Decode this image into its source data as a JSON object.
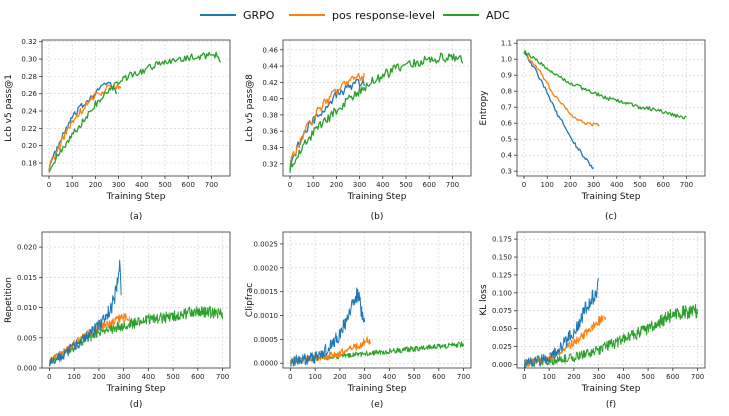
{
  "legend": [
    {
      "name": "GRPO",
      "color": "#1f77b4"
    },
    {
      "name": "pos response-level",
      "color": "#ff7f0e"
    },
    {
      "name": "ADC",
      "color": "#2ca02c"
    }
  ],
  "chart_data": [
    {
      "type": "line",
      "caption": "(a)",
      "xlabel": "Training Step",
      "ylabel": "Lcb v5 pass@1",
      "xlim": [
        -30,
        780
      ],
      "ylim": [
        0.165,
        0.322
      ],
      "xticks": [
        0,
        100,
        200,
        300,
        400,
        500,
        600,
        700
      ],
      "yticks": [
        0.18,
        0.2,
        0.22,
        0.24,
        0.26,
        0.28,
        0.3,
        0.32
      ],
      "ytick_labels": [
        "0.18",
        "0.20",
        "0.22",
        "0.24",
        "0.26",
        "0.28",
        "0.30",
        "0.32"
      ],
      "noise": [
        0.004,
        0.004,
        0.004
      ],
      "series": [
        {
          "name": "GRPO",
          "x": [
            0,
            25,
            50,
            75,
            100,
            125,
            150,
            175,
            200,
            225,
            250,
            275,
            290
          ],
          "y": [
            0.175,
            0.19,
            0.205,
            0.22,
            0.232,
            0.24,
            0.248,
            0.255,
            0.262,
            0.268,
            0.272,
            0.268,
            0.262
          ]
        },
        {
          "name": "pos response-level",
          "x": [
            0,
            25,
            50,
            75,
            100,
            125,
            150,
            175,
            200,
            225,
            250,
            275,
            300,
            310
          ],
          "y": [
            0.175,
            0.188,
            0.202,
            0.216,
            0.228,
            0.236,
            0.244,
            0.252,
            0.258,
            0.262,
            0.266,
            0.268,
            0.27,
            0.267
          ]
        },
        {
          "name": "ADC",
          "x": [
            0,
            50,
            100,
            150,
            200,
            250,
            300,
            350,
            400,
            450,
            500,
            550,
            600,
            650,
            700,
            725,
            740
          ],
          "y": [
            0.173,
            0.192,
            0.212,
            0.23,
            0.248,
            0.262,
            0.272,
            0.282,
            0.286,
            0.292,
            0.296,
            0.3,
            0.302,
            0.302,
            0.306,
            0.304,
            0.3
          ]
        }
      ]
    },
    {
      "type": "line",
      "caption": "(b)",
      "xlabel": "Training Step",
      "ylabel": "Lcb v5 pass@8",
      "xlim": [
        -30,
        780
      ],
      "ylim": [
        0.305,
        0.472
      ],
      "xticks": [
        0,
        100,
        200,
        300,
        400,
        500,
        600,
        700
      ],
      "yticks": [
        0.32,
        0.34,
        0.36,
        0.38,
        0.4,
        0.42,
        0.44,
        0.46
      ],
      "ytick_labels": [
        "0.32",
        "0.34",
        "0.36",
        "0.38",
        "0.40",
        "0.42",
        "0.44",
        "0.46"
      ],
      "noise": [
        0.006,
        0.006,
        0.006
      ],
      "series": [
        {
          "name": "GRPO",
          "x": [
            0,
            25,
            50,
            75,
            100,
            125,
            150,
            175,
            200,
            225,
            250,
            275,
            300,
            320
          ],
          "y": [
            0.318,
            0.335,
            0.35,
            0.362,
            0.372,
            0.38,
            0.39,
            0.398,
            0.405,
            0.41,
            0.414,
            0.418,
            0.42,
            0.42
          ]
        },
        {
          "name": "pos response-level",
          "x": [
            0,
            25,
            50,
            75,
            100,
            125,
            150,
            175,
            200,
            225,
            250,
            275,
            300,
            320
          ],
          "y": [
            0.32,
            0.336,
            0.352,
            0.366,
            0.376,
            0.386,
            0.394,
            0.402,
            0.41,
            0.416,
            0.42,
            0.424,
            0.426,
            0.428
          ]
        },
        {
          "name": "ADC",
          "x": [
            0,
            50,
            100,
            150,
            200,
            250,
            300,
            350,
            400,
            450,
            500,
            550,
            600,
            650,
            700,
            725,
            745
          ],
          "y": [
            0.315,
            0.34,
            0.358,
            0.372,
            0.386,
            0.398,
            0.41,
            0.42,
            0.428,
            0.436,
            0.44,
            0.444,
            0.448,
            0.45,
            0.452,
            0.45,
            0.446
          ]
        }
      ]
    },
    {
      "type": "line",
      "caption": "(c)",
      "xlabel": "Training Step",
      "ylabel": "Entropy",
      "xlim": [
        -30,
        780
      ],
      "ylim": [
        0.27,
        1.12
      ],
      "xticks": [
        0,
        100,
        200,
        300,
        400,
        500,
        600,
        700
      ],
      "yticks": [
        0.3,
        0.4,
        0.5,
        0.6,
        0.7,
        0.8,
        0.9,
        1.0,
        1.1
      ],
      "ytick_labels": [
        "0.3",
        "0.4",
        "0.5",
        "0.6",
        "0.7",
        "0.8",
        "0.9",
        "1.0",
        "1.1"
      ],
      "noise": [
        0.012,
        0.012,
        0.012
      ],
      "series": [
        {
          "name": "GRPO",
          "x": [
            0,
            25,
            50,
            75,
            100,
            125,
            150,
            175,
            200,
            225,
            250,
            275,
            300
          ],
          "y": [
            1.05,
            0.99,
            0.93,
            0.86,
            0.79,
            0.71,
            0.64,
            0.58,
            0.52,
            0.46,
            0.41,
            0.36,
            0.32
          ]
        },
        {
          "name": "pos response-level",
          "x": [
            0,
            25,
            50,
            75,
            100,
            125,
            150,
            175,
            200,
            225,
            250,
            275,
            300,
            325
          ],
          "y": [
            1.05,
            1.0,
            0.96,
            0.91,
            0.85,
            0.79,
            0.74,
            0.7,
            0.66,
            0.63,
            0.61,
            0.6,
            0.59,
            0.59
          ]
        },
        {
          "name": "ADC",
          "x": [
            0,
            50,
            100,
            150,
            200,
            250,
            300,
            350,
            400,
            450,
            500,
            550,
            600,
            650,
            700
          ],
          "y": [
            1.05,
            1.0,
            0.94,
            0.89,
            0.85,
            0.82,
            0.79,
            0.76,
            0.74,
            0.72,
            0.7,
            0.69,
            0.67,
            0.65,
            0.63
          ]
        }
      ]
    },
    {
      "type": "line",
      "caption": "(d)",
      "xlabel": "Training Step",
      "ylabel": "Repetition",
      "xlim": [
        -30,
        730
      ],
      "ylim": [
        0,
        0.0225
      ],
      "xticks": [
        0,
        100,
        200,
        300,
        400,
        500,
        600,
        700
      ],
      "yticks": [
        0,
        0.005,
        0.01,
        0.015,
        0.02
      ],
      "ytick_labels": [
        "0.000",
        "0.005",
        "0.010",
        "0.015",
        "0.020"
      ],
      "noise": [
        0.0012,
        0.0008,
        0.001
      ],
      "series": [
        {
          "name": "GRPO",
          "x": [
            0,
            50,
            100,
            150,
            200,
            225,
            250,
            265,
            275,
            285,
            290
          ],
          "y": [
            0.001,
            0.002,
            0.0035,
            0.005,
            0.007,
            0.0085,
            0.01,
            0.012,
            0.014,
            0.017,
            0.013
          ]
        },
        {
          "name": "pos response-level",
          "x": [
            0,
            50,
            100,
            150,
            200,
            250,
            300,
            325
          ],
          "y": [
            0.001,
            0.0025,
            0.004,
            0.0055,
            0.0068,
            0.0075,
            0.0085,
            0.008
          ]
        },
        {
          "name": "ADC",
          "x": [
            0,
            100,
            200,
            300,
            400,
            500,
            600,
            700
          ],
          "y": [
            0.001,
            0.0035,
            0.006,
            0.007,
            0.008,
            0.0085,
            0.0095,
            0.009
          ]
        }
      ]
    },
    {
      "type": "line",
      "caption": "(e)",
      "xlabel": "Training Step",
      "ylabel": "Clipfrac",
      "xlim": [
        -30,
        730
      ],
      "ylim": [
        -0.0001,
        0.00275
      ],
      "xticks": [
        0,
        100,
        200,
        300,
        400,
        500,
        600,
        700
      ],
      "yticks": [
        0,
        0.0005,
        0.001,
        0.0015,
        0.002,
        0.0025
      ],
      "ytick_labels": [
        "0.0000",
        "0.0005",
        "0.0010",
        "0.0015",
        "0.0020",
        "0.0025"
      ],
      "noise": [
        0.00018,
        0.00012,
        8e-05
      ],
      "series": [
        {
          "name": "GRPO",
          "x": [
            0,
            50,
            100,
            150,
            200,
            225,
            250,
            275,
            290,
            300
          ],
          "y": [
            5e-05,
            8e-05,
            0.00012,
            0.0003,
            0.0006,
            0.0009,
            0.0012,
            0.0015,
            0.001,
            0.0008
          ]
        },
        {
          "name": "pos response-level",
          "x": [
            0,
            100,
            200,
            250,
            300,
            325
          ],
          "y": [
            5e-05,
            0.0001,
            0.0002,
            0.0003,
            0.00045,
            0.0005
          ]
        },
        {
          "name": "ADC",
          "x": [
            0,
            100,
            200,
            300,
            400,
            500,
            600,
            700
          ],
          "y": [
            5e-05,
            0.0001,
            0.00015,
            0.0002,
            0.00025,
            0.0003,
            0.00035,
            0.0004
          ]
        }
      ]
    },
    {
      "type": "line",
      "caption": "(f)",
      "xlabel": "Training Step",
      "ylabel": "KL loss",
      "xlim": [
        -30,
        730
      ],
      "ylim": [
        -0.005,
        0.185
      ],
      "xticks": [
        0,
        100,
        200,
        300,
        400,
        500,
        600,
        700
      ],
      "yticks": [
        0,
        0.025,
        0.05,
        0.075,
        0.1,
        0.125,
        0.15,
        0.175
      ],
      "ytick_labels": [
        "0.000",
        "0.025",
        "0.050",
        "0.075",
        "0.100",
        "0.125",
        "0.150",
        "0.175"
      ],
      "noise": [
        0.012,
        0.008,
        0.01
      ],
      "series": [
        {
          "name": "GRPO",
          "x": [
            0,
            50,
            100,
            150,
            200,
            225,
            250,
            275,
            300
          ],
          "y": [
            0.001,
            0.004,
            0.01,
            0.025,
            0.045,
            0.06,
            0.08,
            0.095,
            0.11
          ]
        },
        {
          "name": "pos response-level",
          "x": [
            0,
            100,
            150,
            200,
            250,
            300,
            330
          ],
          "y": [
            0.001,
            0.008,
            0.02,
            0.03,
            0.045,
            0.06,
            0.065
          ]
        },
        {
          "name": "ADC",
          "x": [
            0,
            100,
            200,
            300,
            400,
            500,
            600,
            700
          ],
          "y": [
            0.001,
            0.005,
            0.01,
            0.02,
            0.035,
            0.05,
            0.07,
            0.075
          ]
        }
      ]
    }
  ]
}
